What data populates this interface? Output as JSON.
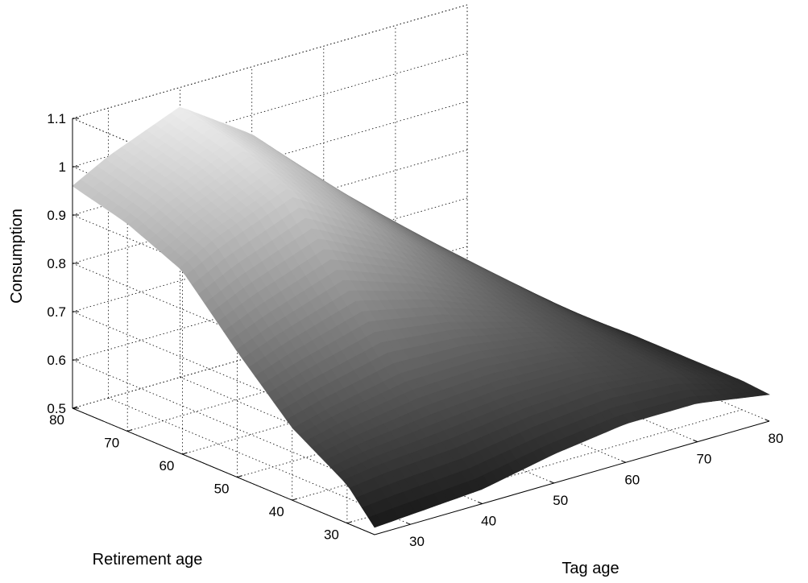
{
  "chart_data": {
    "type": "surface",
    "title": "",
    "xlabel": "Tag age",
    "ylabel": "Retirement age",
    "zlabel": "Consumption",
    "xlim": [
      25,
      80
    ],
    "ylim": [
      25,
      80
    ],
    "zlim": [
      0.5,
      1.1
    ],
    "xticks": [
      30,
      40,
      50,
      60,
      70,
      80
    ],
    "yticks": [
      30,
      40,
      50,
      60,
      70,
      80
    ],
    "zticks": [
      0.5,
      0.6,
      0.7,
      0.8,
      0.9,
      1,
      1.1
    ],
    "grid": true,
    "colormap": "gray",
    "surface": {
      "x": [
        25,
        30,
        40,
        50,
        60,
        70,
        80
      ],
      "y": [
        25,
        30,
        40,
        50,
        60,
        70,
        80
      ],
      "z": [
        [
          0.515,
          0.52,
          0.53,
          0.56,
          0.58,
          0.58,
          0.555
        ],
        [
          0.58,
          0.59,
          0.6,
          0.62,
          0.63,
          0.615,
          0.56
        ],
        [
          0.65,
          0.67,
          0.7,
          0.7,
          0.68,
          0.63,
          0.56
        ],
        [
          0.76,
          0.79,
          0.84,
          0.79,
          0.72,
          0.65,
          0.56
        ],
        [
          0.88,
          0.92,
          0.98,
          0.88,
          0.77,
          0.67,
          0.555
        ],
        [
          0.93,
          0.97,
          1.03,
          0.93,
          0.8,
          0.68,
          0.555
        ],
        [
          0.96,
          1.0,
          1.06,
          0.96,
          0.82,
          0.69,
          0.555
        ]
      ],
      "retirement_boundary": "x = y"
    }
  }
}
